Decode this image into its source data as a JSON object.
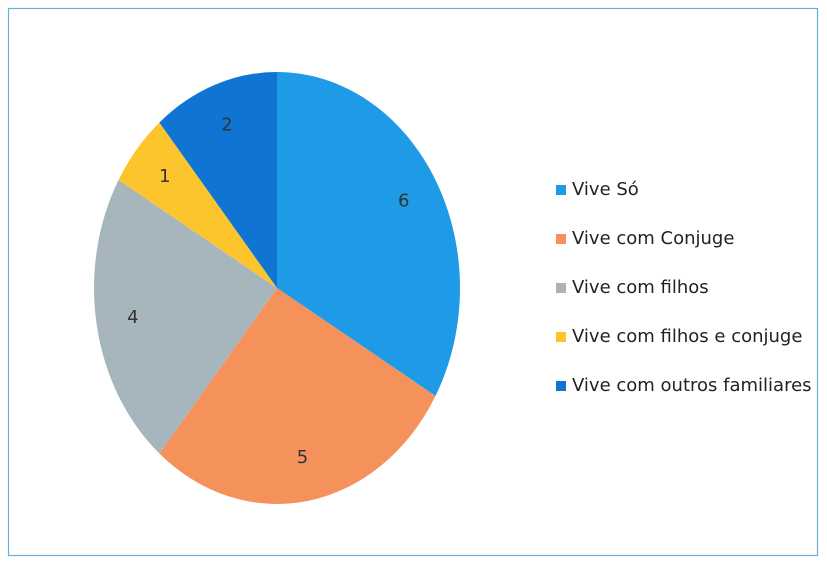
{
  "chart_data": {
    "type": "pie",
    "categories": [
      "Vive Só",
      "Vive com Conjuge",
      "Vive com filhos",
      "Vive com filhos e conjuge",
      "Vive com outros familiares"
    ],
    "values": [
      6,
      5,
      4,
      1,
      2
    ],
    "colors": [
      "#1f9ae6",
      "#f5925c",
      "#a7b5bd",
      "#fcc52e",
      "#0f74d2"
    ],
    "legend": "right"
  }
}
